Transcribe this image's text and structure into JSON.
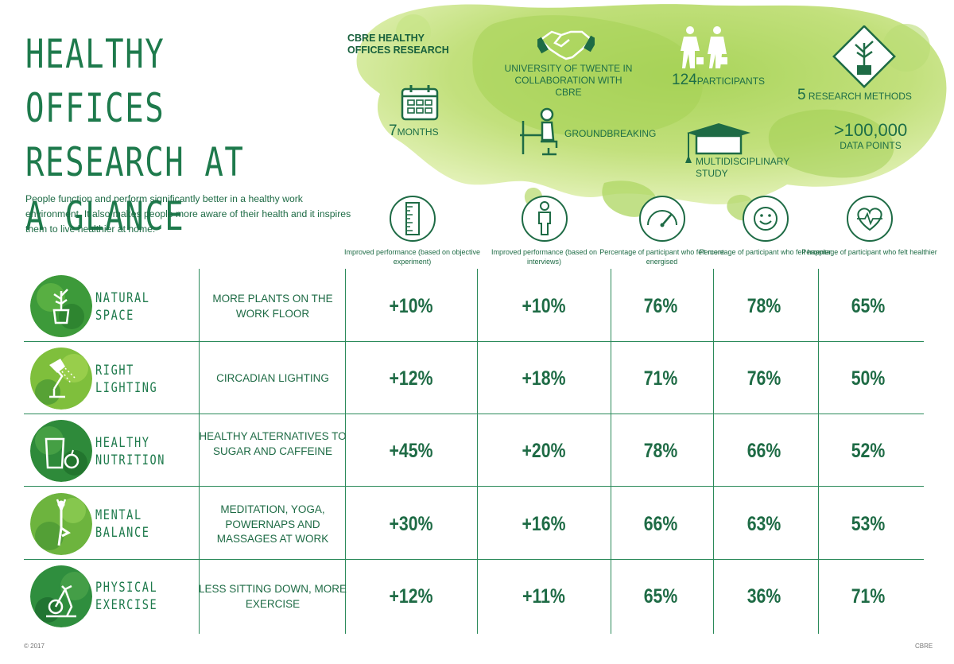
{
  "title": "HEALTHY OFFICES RESEARCH AT A GLANCE",
  "intro": "People function and perform significantly better in a healthy work environment. It also makes people more aware of their health and it inspires them to live healthier at home.",
  "research": {
    "heading": "CBRE HEALTHY OFFICES RESEARCH",
    "university": "UNIVERSITY OF TWENTE IN COLLABORATION WITH CBRE",
    "participants_num": "124",
    "participants_label": "PARTICIPANTS",
    "methods_num": "5",
    "methods_label": "RESEARCH METHODS",
    "months_num": "7",
    "months_label": "MONTHS",
    "groundbreaking": "GROUNDBREAKING",
    "multidisciplinary": "MULTIDISCIPLINARY STUDY",
    "datapoints_num": ">100,000",
    "datapoints_label": "DATA POINTS"
  },
  "chart_data": {
    "type": "table",
    "columns": [
      "Improved performance (based on objective experiment)",
      "Improved performance (based on interviews)",
      "Percentage of participant who felt more energised",
      "Percentage of participant who felt happier",
      "Percentage of participant who felt healthier"
    ],
    "rows": [
      {
        "category": "NATURAL SPACE",
        "intervention": "MORE PLANTS ON THE WORK FLOOR",
        "values": [
          "+10%",
          "+10%",
          "76%",
          "78%",
          "65%"
        ]
      },
      {
        "category": "RIGHT LIGHTING",
        "intervention": "CIRCADIAN LIGHTING",
        "values": [
          "+12%",
          "+18%",
          "71%",
          "76%",
          "50%"
        ]
      },
      {
        "category": "HEALTHY NUTRITION",
        "intervention": "HEALTHY ALTERNATIVES TO SUGAR AND CAFFEINE",
        "values": [
          "+45%",
          "+20%",
          "78%",
          "66%",
          "52%"
        ]
      },
      {
        "category": "MENTAL BALANCE",
        "intervention": "MEDITATION, YOGA, POWERNAPS AND MASSAGES AT WORK",
        "values": [
          "+30%",
          "+16%",
          "66%",
          "63%",
          "53%"
        ]
      },
      {
        "category": "PHYSICAL EXERCISE",
        "intervention": "LESS SITTING DOWN, MORE EXERCISE",
        "values": [
          "+12%",
          "+11%",
          "65%",
          "36%",
          "71%"
        ]
      }
    ]
  },
  "footer": {
    "copyright": "© 2017",
    "brand": "CBRE"
  },
  "colors": {
    "primary": "#1e6b45",
    "lime": "#b5d96a",
    "limeLight": "#d7ec9c",
    "grid": "#2b8a5a"
  }
}
